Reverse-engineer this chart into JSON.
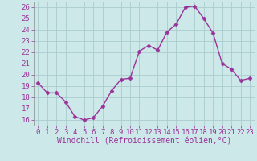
{
  "x": [
    0,
    1,
    2,
    3,
    4,
    5,
    6,
    7,
    8,
    9,
    10,
    11,
    12,
    13,
    14,
    15,
    16,
    17,
    18,
    19,
    20,
    21,
    22,
    23
  ],
  "y": [
    19.3,
    18.4,
    18.4,
    17.6,
    16.3,
    16.0,
    16.2,
    17.2,
    18.6,
    19.6,
    19.7,
    22.1,
    22.6,
    22.2,
    23.8,
    24.5,
    26.0,
    26.1,
    25.0,
    23.7,
    21.0,
    20.5,
    19.5,
    19.7
  ],
  "line_color": "#993399",
  "marker": "D",
  "marker_size": 2.5,
  "line_width": 1.0,
  "bg_color": "#cce8e8",
  "grid_color": "#aacccc",
  "xlabel": "Windchill (Refroidissement éolien,°C)",
  "xlabel_fontsize": 7,
  "tick_fontsize": 6.5,
  "ylim": [
    15.5,
    26.5
  ],
  "xlim": [
    -0.5,
    23.5
  ],
  "yticks": [
    16,
    17,
    18,
    19,
    20,
    21,
    22,
    23,
    24,
    25,
    26
  ],
  "xticks": [
    0,
    1,
    2,
    3,
    4,
    5,
    6,
    7,
    8,
    9,
    10,
    11,
    12,
    13,
    14,
    15,
    16,
    17,
    18,
    19,
    20,
    21,
    22,
    23
  ]
}
